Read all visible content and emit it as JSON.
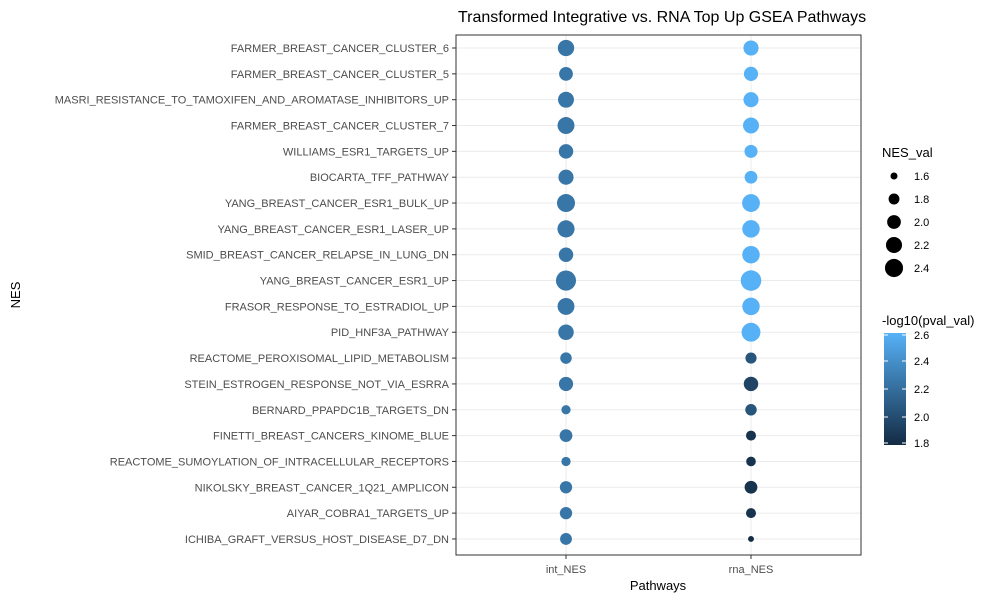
{
  "chart_data": {
    "type": "scatter",
    "title": "Transformed Integrative vs. RNA Top Up GSEA Pathways",
    "xlabel": "Pathways",
    "ylabel": "NES",
    "x_categories": [
      "int_NES",
      "rna_NES"
    ],
    "y_categories": [
      "FARMER_BREAST_CANCER_CLUSTER_6",
      "FARMER_BREAST_CANCER_CLUSTER_5",
      "MASRI_RESISTANCE_TO_TAMOXIFEN_AND_AROMATASE_INHIBITORS_UP",
      "FARMER_BREAST_CANCER_CLUSTER_7",
      "WILLIAMS_ESR1_TARGETS_UP",
      "BIOCARTA_TFF_PATHWAY",
      "YANG_BREAST_CANCER_ESR1_BULK_UP",
      "YANG_BREAST_CANCER_ESR1_LASER_UP",
      "SMID_BREAST_CANCER_RELAPSE_IN_LUNG_DN",
      "YANG_BREAST_CANCER_ESR1_UP",
      "FRASOR_RESPONSE_TO_ESTRADIOL_UP",
      "PID_HNF3A_PATHWAY",
      "REACTOME_PEROXISOMAL_LIPID_METABOLISM",
      "STEIN_ESTROGEN_RESPONSE_NOT_VIA_ESRRA",
      "BERNARD_PPAPDC1B_TARGETS_DN",
      "FINETTI_BREAST_CANCERS_KINOME_BLUE",
      "REACTOME_SUMOYLATION_OF_INTRACELLULAR_RECEPTORS",
      "NIKOLSKY_BREAST_CANCER_1Q21_AMPLICON",
      "AIYAR_COBRA1_TARGETS_UP",
      "ICHIBA_GRAFT_VERSUS_HOST_DISEASE_D7_DN"
    ],
    "series": [
      {
        "name": "int_NES",
        "nes": [
          2.15,
          1.95,
          2.12,
          2.2,
          2.0,
          2.05,
          2.3,
          2.22,
          2.0,
          2.5,
          2.2,
          2.08,
          1.8,
          1.98,
          1.68,
          1.88,
          1.68,
          1.85,
          1.85,
          1.82
        ],
        "neglog10p": [
          2.25,
          2.25,
          2.25,
          2.25,
          2.25,
          2.25,
          2.25,
          2.25,
          2.25,
          2.25,
          2.25,
          2.25,
          2.25,
          2.25,
          2.25,
          2.25,
          2.25,
          2.25,
          2.25,
          2.25
        ]
      },
      {
        "name": "rna_NES",
        "nes": [
          2.05,
          1.98,
          2.05,
          2.12,
          1.9,
          1.88,
          2.28,
          2.25,
          2.25,
          2.55,
          2.25,
          2.38,
          1.78,
          2.0,
          1.8,
          1.72,
          1.7,
          1.88,
          1.72,
          1.55
        ],
        "neglog10p": [
          2.6,
          2.6,
          2.6,
          2.6,
          2.6,
          2.6,
          2.6,
          2.6,
          2.6,
          2.6,
          2.6,
          2.6,
          2.05,
          1.95,
          2.05,
          1.85,
          1.85,
          1.85,
          1.85,
          1.8
        ]
      }
    ],
    "size_legend": {
      "title": "NES_val",
      "breaks": [
        1.6,
        1.8,
        2.0,
        2.2,
        2.4
      ],
      "labels": [
        "1.6",
        "1.8",
        "2.0",
        "2.2",
        "2.4"
      ]
    },
    "color_legend": {
      "title": "-log10(pval_val)",
      "range": [
        1.8,
        2.6
      ],
      "breaks": [
        1.8,
        2.0,
        2.2,
        2.4,
        2.6
      ],
      "labels": [
        "1.8",
        "2.0",
        "2.2",
        "2.4",
        "2.6"
      ],
      "low_color": "#132b43",
      "high_color": "#56b1f7"
    },
    "grid": true,
    "legend_position": "right"
  }
}
